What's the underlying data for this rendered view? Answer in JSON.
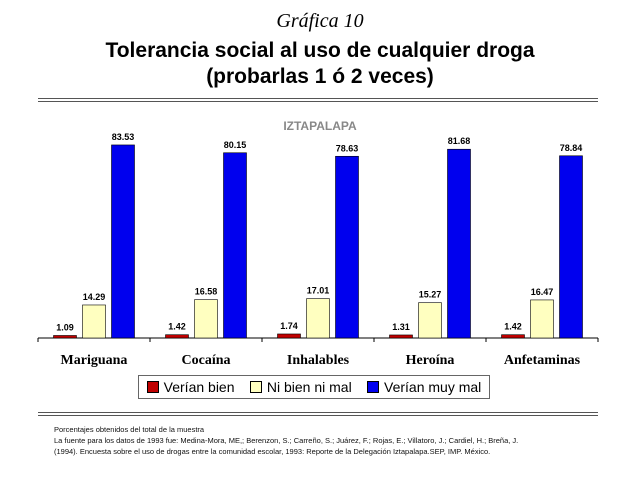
{
  "figure_number": "Gráfica 10",
  "title_line1": "Tolerancia social al uso de cualquier droga",
  "title_line2": "(probarlas 1 ó 2 veces)",
  "chart_data": {
    "type": "bar",
    "title": "IZTAPALAPA",
    "categories": [
      "Mariguana",
      "Cocaína",
      "Inhalables",
      "Heroína",
      "Anfetaminas"
    ],
    "series": [
      {
        "name": "Verían bien",
        "color": "#c00000",
        "values": [
          1.09,
          1.42,
          1.74,
          1.31,
          1.42
        ]
      },
      {
        "name": "Ni bien ni mal",
        "color": "#ffffc0",
        "values": [
          14.29,
          16.58,
          17.01,
          15.27,
          16.47
        ]
      },
      {
        "name": "Verían muy mal",
        "color": "#0000ee",
        "values": [
          83.53,
          80.15,
          78.63,
          81.68,
          78.84
        ]
      }
    ],
    "value_labels": [
      [
        "1.09",
        "1.42",
        "1.74",
        "1.31",
        "1.42"
      ],
      [
        "14.29",
        "16.58",
        "17.01",
        "15.27",
        "16.47"
      ],
      [
        "83.53",
        "80.15",
        "78.63",
        "81.68",
        "78.84"
      ]
    ],
    "ylim": [
      0,
      90
    ],
    "legend_position": "bottom",
    "grid": false
  },
  "notes": {
    "line1": "Porcentajes obtenidos del total de la muestra",
    "line2": "La fuente para los datos de 1993 fue: Medina-Mora, ME,; Berenzon, S.; Carreño, S.; Juárez, F.; Rojas, E.; Villatoro, J.; Cardiel, H.; Breña, J.",
    "line3": "(1994). Encuesta sobre el uso de drogas entre la comunidad escolar, 1993: Reporte de la Delegación Iztapalapa.SEP, IMP. México."
  }
}
